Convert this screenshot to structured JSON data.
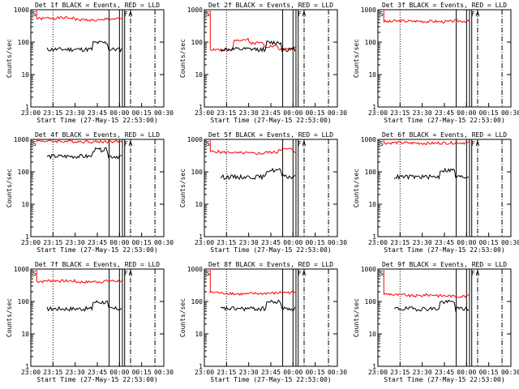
{
  "chart_data": [
    {
      "type": "line",
      "title": "Det 1f BLACK = Events, RED = LLD",
      "det": "1f",
      "llg": "mid",
      "lla": [
        530,
        555,
        560,
        490,
        470,
        520,
        500
      ],
      "evg": "low",
      "ev_start": 0.12,
      "ev_end": 0.8,
      "xlabel": "Start Time (27-May-15 22:53:00)",
      "ylabel": "Counts/sec"
    },
    {
      "type": "line",
      "title": "Det 2f BLACK = Events, RED = LLD",
      "det": "2f",
      "llg": "mid2",
      "lla": [
        60,
        55,
        120,
        95,
        75,
        60,
        70
      ],
      "evg": "low2",
      "ev_start": 0.12,
      "ev_end": 0.8,
      "xlabel": "Start Time (27-May-15 22:53:00)",
      "ylabel": "Counts/sec"
    },
    {
      "type": "line",
      "title": "Det 3f BLACK = Events, RED = LLD",
      "det": "3f",
      "llg": "hi",
      "lla": [
        430,
        450,
        445,
        440,
        430,
        450,
        440
      ],
      "evg": "none",
      "xlabel": "Start Time (27-May-15 22:53:00)",
      "ylabel": "Counts/sec"
    },
    {
      "type": "line",
      "title": "Det 4f BLACK = Events, RED = LLD",
      "det": "4f",
      "llg": "flat",
      "lla": [
        900,
        880,
        870,
        860,
        850,
        860,
        860
      ],
      "evg": "flat",
      "ev_start": 0.12,
      "ev_end": 0.8,
      "xlabel": "Start Time (27-May-15 22:53:00)",
      "ylabel": "Counts/sec"
    },
    {
      "type": "line",
      "title": "Det 5f BLACK = Events, RED = LLD",
      "det": "5f",
      "llg": "hi2",
      "lla": [
        420,
        400,
        380,
        370,
        400,
        500,
        430
      ],
      "evg": "mid",
      "ev_start": 0.12,
      "ev_end": 0.8,
      "xlabel": "Start Time (27-May-15 22:53:00)",
      "ylabel": "Counts/sec"
    },
    {
      "type": "line",
      "title": "Det 6f BLACK = Events, RED = LLD",
      "det": "6f",
      "llg": "top",
      "lla": [
        780,
        790,
        770,
        760,
        780,
        790,
        770
      ],
      "evg": "mid",
      "ev_start": 0.12,
      "ev_end": 0.8,
      "xlabel": "Start Time (27-May-15 22:53:00)",
      "ylabel": "Counts/sec"
    },
    {
      "type": "line",
      "title": "Det 7f BLACK = Events, RED = LLD",
      "det": "7f",
      "llg": "mid",
      "lla": [
        420,
        440,
        430,
        400,
        410,
        430,
        420
      ],
      "evg": "low",
      "ev_start": 0.12,
      "ev_end": 0.8,
      "xlabel": "Start Time (27-May-15 22:53:00)",
      "ylabel": "Counts/sec"
    },
    {
      "type": "line",
      "title": "Det 8f BLACK = Events, RED = LLD",
      "det": "8f",
      "llg": "lo",
      "lla": [
        190,
        180,
        170,
        175,
        180,
        190,
        185
      ],
      "evg": "low",
      "ev_start": 0.12,
      "ev_end": 0.8,
      "xlabel": "Start Time (27-May-15 22:53:00)",
      "ylabel": "Counts/sec"
    },
    {
      "type": "line",
      "title": "Det 9f BLACK = Events, RED = LLD",
      "det": "9f",
      "llg": "lo",
      "lla": [
        170,
        160,
        150,
        160,
        150,
        145,
        160
      ],
      "evg": "low",
      "ev_start": 0.12,
      "ev_end": 0.8,
      "xlabel": "Start Time (27-May-15 22:53:00)",
      "ylabel": "Counts/sec"
    }
  ],
  "x_ticks": [
    "23:00",
    "23:15",
    "23:30",
    "23:45",
    "00:00",
    "00:15",
    "00:30"
  ],
  "y_ticks": [
    "1",
    "10",
    "100",
    "1000"
  ],
  "ylim": [
    1,
    1000
  ],
  "colors": {
    "events": "#000000",
    "lld": "#ff0000",
    "background": "#ffffff"
  }
}
